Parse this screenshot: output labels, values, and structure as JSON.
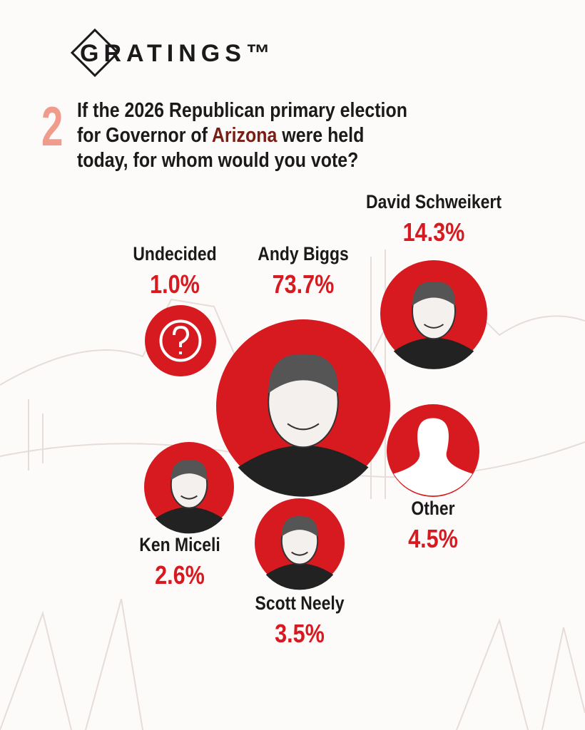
{
  "brand": "GRATINGS™",
  "question": {
    "number": "2",
    "before": "If the 2026 Republican primary election for Governor of",
    "highlight": "Arizona",
    "after": "were held today, for whom would you vote?"
  },
  "chart_data": {
    "type": "bubble",
    "color": "#d71920",
    "categories": [
      "Andy Biggs",
      "David Schweikert",
      "Undecided",
      "Other",
      "Ken Miceli",
      "Scott Neely"
    ],
    "values": [
      73.7,
      14.3,
      1.0,
      4.5,
      2.6,
      3.5
    ],
    "value_labels": [
      "73.7%",
      "14.3%",
      "1.0%",
      "4.5%",
      "2.6%",
      "3.5%"
    ]
  }
}
